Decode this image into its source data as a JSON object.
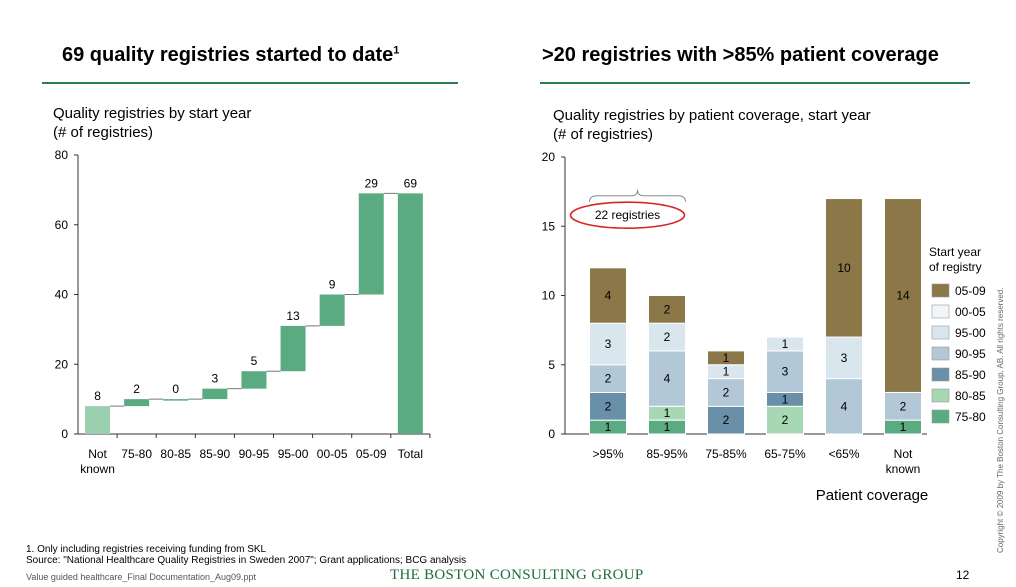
{
  "left": {
    "title": "69 quality registries started to date",
    "title_sup": "1",
    "subtitle_line1": "Quality registries by start year",
    "subtitle_line2": "(# of registries)"
  },
  "right": {
    "title": ">20 registries with >85% patient coverage",
    "subtitle_line1": "Quality registries by patient coverage, start year",
    "subtitle_line2": "(# of registries)",
    "callout": "22 registries",
    "xlabel": "Patient coverage",
    "legend_title_line1": "Start year",
    "legend_title_line2": "of registry"
  },
  "footnote1": "1. Only including registries receiving funding from SKL",
  "source": "Source: \"National Healthcare Quality Registries in Sweden 2007\"; Grant applications; BCG analysis",
  "doc_name": "Value guided healthcare_Final Documentation_Aug09.ppt",
  "brand": "THE BOSTON CONSULTING GROUP",
  "copyright": "Copyright © 2009 by The Boston Consulting Group, AB. All rights reserved.",
  "page_number": "12",
  "colors": {
    "waterfall_green": "#5aab82",
    "not_known_green": "#9ccfb0",
    "rule_green": "#2e7d4f",
    "callout_red": "#d62728"
  },
  "chart_data": [
    {
      "type": "bar",
      "subtype": "waterfall",
      "categories": [
        "Not known",
        "75-80",
        "80-85",
        "85-90",
        "90-95",
        "95-00",
        "00-05",
        "05-09",
        "Total"
      ],
      "category_lines": [
        [
          "Not",
          "known"
        ],
        [
          "75-80"
        ],
        [
          "80-85"
        ],
        [
          "85-90"
        ],
        [
          "90-95"
        ],
        [
          "95-00"
        ],
        [
          "00-05"
        ],
        [
          "05-09"
        ],
        [
          "Total"
        ]
      ],
      "values": [
        8,
        2,
        0,
        3,
        5,
        13,
        9,
        29,
        69
      ],
      "total_index": 8,
      "ylim": [
        0,
        80
      ],
      "yticks": [
        0,
        20,
        40,
        60,
        80
      ]
    },
    {
      "type": "bar",
      "subtype": "stacked",
      "categories": [
        ">95%",
        "85-95%",
        "75-85%",
        "65-75%",
        "<65%",
        "Not known"
      ],
      "category_lines": [
        [
          ">95%"
        ],
        [
          "85-95%"
        ],
        [
          "75-85%"
        ],
        [
          "65-75%"
        ],
        [
          "<65%"
        ],
        [
          "Not",
          "known"
        ]
      ],
      "series": [
        {
          "name": "75-80",
          "color": "#5aab82",
          "values": [
            1,
            1,
            0,
            0,
            0,
            1
          ]
        },
        {
          "name": "80-85",
          "color": "#a8d8b3",
          "values": [
            0,
            1,
            0,
            2,
            0,
            0
          ]
        },
        {
          "name": "85-90",
          "color": "#6a8fa8",
          "values": [
            2,
            0,
            2,
            1,
            0,
            0
          ]
        },
        {
          "name": "90-95",
          "color": "#b2c8d6",
          "values": [
            2,
            4,
            2,
            3,
            4,
            2
          ]
        },
        {
          "name": "95-00",
          "color": "#d9e6ee",
          "values": [
            3,
            2,
            1,
            1,
            3,
            0
          ]
        },
        {
          "name": "00-05",
          "color": "#f2f5f7",
          "values": [
            0,
            0,
            0,
            0,
            0,
            0
          ]
        },
        {
          "name": "05-09",
          "color": "#8b7748",
          "values": [
            4,
            2,
            1,
            0,
            10,
            14
          ]
        }
      ],
      "legend_order": [
        "05-09",
        "00-05",
        "95-00",
        "90-95",
        "85-90",
        "80-85",
        "75-80"
      ],
      "ylim": [
        0,
        20
      ],
      "yticks": [
        0,
        5,
        10,
        15,
        20
      ]
    }
  ]
}
